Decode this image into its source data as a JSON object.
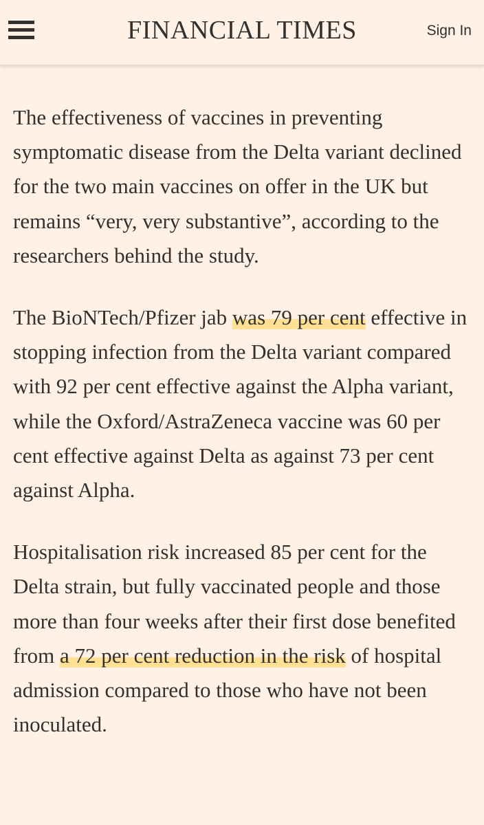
{
  "header": {
    "menu_icon": "hamburger-menu-icon",
    "logo": "FINANCIAL TIMES",
    "signin_label": "Sign In"
  },
  "article": {
    "paragraphs": [
      {
        "text": "The effectiveness of vaccines in preventing symptomatic disease from the Delta variant declined for the two main vaccines on offer in the UK but remains “very, very substantive”, according to the researchers behind the study."
      },
      {
        "before": "The BioNTech/Pfizer jab ",
        "highlight": "was 79 per cent",
        "after": " effective in stopping infection from the Delta variant compared with 92 per cent effective against the Alpha variant, while the Oxford/AstraZeneca vaccine was 60 per cent effective against Delta as against 73 per cent against Alpha."
      },
      {
        "before": "Hospitalisation risk increased 85 per cent for the Delta strain, but fully vaccinated people and those more than four weeks after their first dose benefited from ",
        "highlight": "a 72 per cent reduction in the risk",
        "after": " of hospital admission compared to those who have not been inoculated."
      }
    ]
  },
  "colors": {
    "background": "#fff1e5",
    "text": "#33302e",
    "highlight": "#ffdb78"
  }
}
